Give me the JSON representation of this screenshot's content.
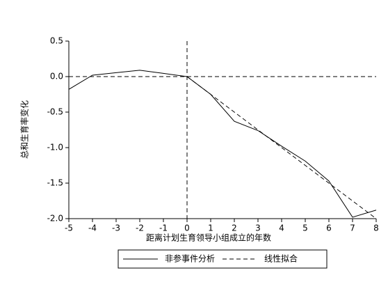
{
  "chart_data": {
    "type": "line",
    "x_label": "距离计划生育领导小组成立的年数",
    "y_label": "总和生育率变化",
    "x": [
      -5,
      -4,
      -3,
      -2,
      -1,
      0,
      1,
      2,
      3,
      4,
      5,
      6,
      7,
      8
    ],
    "series": [
      {
        "name": "非参事件分析",
        "color": "#000000",
        "style": "solid",
        "values": [
          -0.18,
          0.02,
          0.055,
          0.09,
          0.045,
          0,
          -0.25,
          -0.63,
          -0.76,
          -0.98,
          -1.19,
          -1.47,
          -1.98,
          -1.88
        ]
      },
      {
        "name": "线性拟合",
        "color": "#000000",
        "style": "dashed",
        "values": [
          null,
          null,
          null,
          null,
          null,
          0,
          -0.25,
          -0.5,
          -0.75,
          -1.0,
          -1.25,
          -1.5,
          -1.75,
          -2.0
        ]
      }
    ],
    "hline": 0,
    "vline": 0,
    "xlim": [
      -5,
      8
    ],
    "xticks": [
      -5,
      -4,
      -3,
      -2,
      -1,
      0,
      1,
      2,
      3,
      4,
      5,
      6,
      7,
      8
    ],
    "ylim": [
      -2.0,
      0.5
    ],
    "yticks": [
      0.5,
      {
        "value": 0,
        "label": "0.0"
      },
      -0.5,
      {
        "value": -1,
        "label": "-1.0"
      },
      -1.5,
      {
        "value": -2,
        "label": "-2.0"
      }
    ],
    "grid": false,
    "legend": "bottom"
  }
}
